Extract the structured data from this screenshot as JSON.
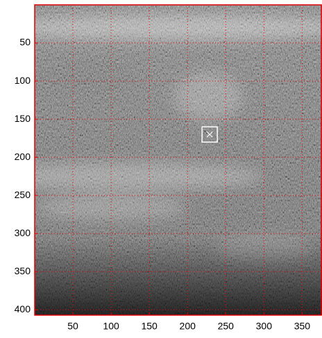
{
  "chart_data": {
    "type": "image",
    "xlim": [
      0,
      376
    ],
    "ylim": [
      0,
      407
    ],
    "y_reversed": true,
    "xticks": [
      50,
      100,
      150,
      200,
      250,
      300,
      350
    ],
    "yticks": [
      50,
      100,
      150,
      200,
      250,
      300,
      350,
      400
    ],
    "grid": true,
    "grid_color": "#e00000",
    "axis_color": "#e00000",
    "marker": {
      "x": 229,
      "y": 170,
      "color": "#ffffff"
    }
  }
}
